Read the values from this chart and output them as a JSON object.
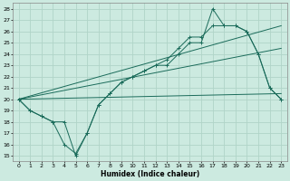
{
  "xlabel": "Humidex (Indice chaleur)",
  "xlim": [
    -0.5,
    23.5
  ],
  "ylim": [
    14.5,
    28.5
  ],
  "yticks": [
    15,
    16,
    17,
    18,
    19,
    20,
    21,
    22,
    23,
    24,
    25,
    26,
    27,
    28
  ],
  "xticks": [
    0,
    1,
    2,
    3,
    4,
    5,
    6,
    7,
    8,
    9,
    10,
    11,
    12,
    13,
    14,
    15,
    16,
    17,
    18,
    19,
    20,
    21,
    22,
    23
  ],
  "bg_color": "#cceae0",
  "grid_color": "#b0d4c8",
  "line_color": "#1a6b5a",
  "flat_line": {
    "x": [
      0,
      23
    ],
    "y": [
      20.0,
      20.5
    ]
  },
  "diag_line": {
    "x": [
      0,
      23
    ],
    "y": [
      20.0,
      26.5
    ]
  },
  "diag_line2": {
    "x": [
      0,
      23
    ],
    "y": [
      20.0,
      24.5
    ]
  },
  "jagged1_x": [
    0,
    1,
    2,
    3,
    4,
    5,
    6,
    7,
    8,
    9,
    10,
    11,
    12,
    13,
    14,
    15,
    16,
    17,
    18,
    19,
    20,
    21,
    22,
    23
  ],
  "jagged1_y": [
    20.0,
    19.0,
    18.5,
    18.0,
    16.0,
    15.2,
    17.0,
    19.5,
    20.5,
    21.5,
    22.0,
    22.5,
    23.0,
    23.5,
    24.5,
    25.5,
    25.5,
    26.5,
    26.5,
    26.5,
    26.0,
    24.0,
    21.0,
    20.0
  ],
  "jagged2_x": [
    0,
    1,
    2,
    3,
    4,
    5,
    6,
    7,
    8,
    9,
    10,
    11,
    12,
    13,
    14,
    15,
    16,
    17,
    18,
    19,
    20,
    21,
    22,
    23
  ],
  "jagged2_y": [
    20.0,
    19.0,
    18.5,
    18.0,
    18.0,
    15.0,
    17.0,
    19.5,
    20.5,
    21.5,
    22.0,
    22.5,
    23.0,
    23.0,
    24.0,
    25.0,
    25.0,
    28.0,
    26.5,
    26.5,
    26.0,
    24.0,
    21.0,
    20.0
  ]
}
